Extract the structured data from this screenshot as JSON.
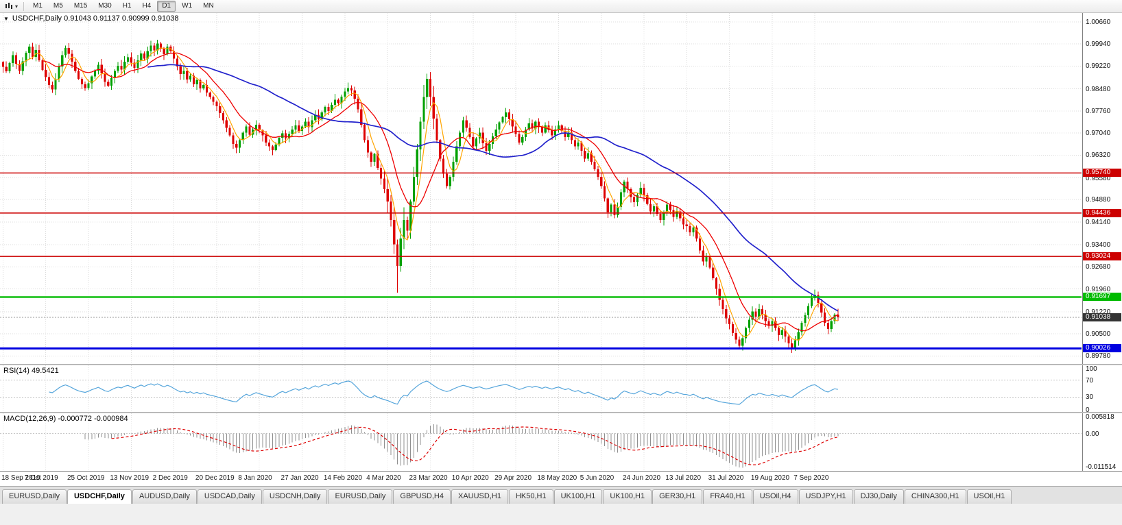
{
  "toolbar": {
    "timeframes": [
      "M1",
      "M5",
      "M15",
      "M30",
      "H1",
      "H4",
      "D1",
      "W1",
      "MN"
    ],
    "active_timeframe": "D1"
  },
  "labels": {
    "chart_title": "USDCHF,Daily 0.91043 0.91137 0.90999 0.91038",
    "rsi": "RSI(14) 49.5421",
    "macd": "MACD(12,26,9) -0.000772 -0.000984"
  },
  "tabs": {
    "items": [
      "EURUSD,Daily",
      "USDCHF,Daily",
      "AUDUSD,Daily",
      "USDCAD,Daily",
      "USDCNH,Daily",
      "EURUSD,Daily",
      "GBPUSD,H4",
      "XAUUSD,H1",
      "HK50,H1",
      "UK100,H1",
      "UK100,H1",
      "GER30,H1",
      "FRA40,H1",
      "USOil,H4",
      "USDJPY,H1",
      "DJ30,Daily",
      "CHINA300,H1",
      "USOil,H1"
    ],
    "active_index": 1
  },
  "chart_data": {
    "type": "candlestick",
    "symbol": "USDCHF",
    "timeframe": "Daily",
    "ohlc_current": {
      "open": 0.91043,
      "high": 0.91137,
      "low": 0.90999,
      "close": 0.91038
    },
    "y_range": [
      0.8952,
      1.0095
    ],
    "y_ticks": [
      "1.00660",
      "0.99940",
      "0.99220",
      "0.98480",
      "0.97760",
      "0.97040",
      "0.96320",
      "0.95580",
      "0.94880",
      "0.94140",
      "0.93400",
      "0.92680",
      "0.91960",
      "0.91220",
      "0.90500",
      "0.89780"
    ],
    "x_tick_labels": [
      "18 Sep 2019",
      "7 Oct 2019",
      "25 Oct 2019",
      "13 Nov 2019",
      "2 Dec 2019",
      "20 Dec 2019",
      "8 Jan 2020",
      "27 Jan 2020",
      "14 Feb 2020",
      "4 Mar 2020",
      "23 Mar 2020",
      "10 Apr 2020",
      "29 Apr 2020",
      "18 May 2020",
      "5 Jun 2020",
      "24 Jun 2020",
      "13 Jul 2020",
      "31 Jul 2020",
      "19 Aug 2020",
      "7 Sep 2020"
    ],
    "x_tick_every": 13,
    "data_fraction": 0.775,
    "first_open": 0.9935,
    "closes": [
      0.992,
      0.9905,
      0.9932,
      0.9958,
      0.993,
      0.9906,
      0.9938,
      0.9965,
      0.9986,
      0.9952,
      0.9975,
      0.9941,
      0.991,
      0.9886,
      0.9861,
      0.9846,
      0.988,
      0.9921,
      0.9958,
      0.9981,
      0.9962,
      0.9936,
      0.9906,
      0.9881,
      0.9863,
      0.9851,
      0.9866,
      0.9889,
      0.9906,
      0.9926,
      0.9899,
      0.9871,
      0.9858,
      0.9883,
      0.9906,
      0.9923,
      0.9911,
      0.9936,
      0.9951,
      0.9933,
      0.9916,
      0.9941,
      0.9963,
      0.9946,
      0.9971,
      0.9989,
      0.9973,
      0.9996,
      0.9979,
      0.9961,
      0.9986,
      0.9971,
      0.9946,
      0.9921,
      0.9896,
      0.9906,
      0.9879,
      0.9891,
      0.9863,
      0.9876,
      0.9849,
      0.9861,
      0.9836,
      0.9821,
      0.9806,
      0.9791,
      0.9769,
      0.9746,
      0.9721,
      0.9696,
      0.9669,
      0.9656,
      0.9681,
      0.9706,
      0.9726,
      0.9699,
      0.9716,
      0.9731,
      0.9713,
      0.9696,
      0.9673,
      0.9661,
      0.9649,
      0.9666,
      0.9689,
      0.9703,
      0.9686,
      0.9701,
      0.9716,
      0.9729,
      0.9711,
      0.9726,
      0.9741,
      0.9723,
      0.9746,
      0.9763,
      0.9749,
      0.9771,
      0.9789,
      0.9776,
      0.9796,
      0.9813,
      0.9801,
      0.9823,
      0.9839,
      0.9851,
      0.9843,
      0.9816,
      0.9781,
      0.9731,
      0.9681,
      0.9641,
      0.9611,
      0.9636,
      0.9591,
      0.9556,
      0.9521,
      0.9481,
      0.9421,
      0.9341,
      0.9271,
      0.9361,
      0.9421,
      0.9386,
      0.9481,
      0.9561,
      0.9651,
      0.9741,
      0.9821,
      0.9881,
      0.9821,
      0.9751,
      0.9681,
      0.9621,
      0.9571,
      0.9531,
      0.9561,
      0.9611,
      0.9661,
      0.9706,
      0.9746,
      0.9721,
      0.9691,
      0.9661,
      0.9686,
      0.9706,
      0.9671,
      0.9646,
      0.9669,
      0.9693,
      0.9716,
      0.9739,
      0.9756,
      0.9771,
      0.9749,
      0.9726,
      0.9701,
      0.9673,
      0.9691,
      0.9716,
      0.9736,
      0.9719,
      0.9741,
      0.9723,
      0.9706,
      0.9729,
      0.9713,
      0.9696,
      0.9716,
      0.9729,
      0.9711,
      0.9691,
      0.9706,
      0.9681,
      0.9661,
      0.9673,
      0.9646,
      0.9621,
      0.9639,
      0.9611,
      0.9586,
      0.9561,
      0.9531,
      0.9491,
      0.9446,
      0.9471,
      0.9436,
      0.9463,
      0.9511,
      0.9546,
      0.9521,
      0.9496,
      0.9479,
      0.9503,
      0.9526,
      0.9501,
      0.9473,
      0.9449,
      0.9466,
      0.9441,
      0.9421,
      0.9446,
      0.9471,
      0.9453,
      0.9431,
      0.9449,
      0.9426,
      0.9406,
      0.9401,
      0.9381,
      0.9396,
      0.9361,
      0.9321,
      0.9286,
      0.9301,
      0.9266,
      0.9231,
      0.9196,
      0.9161,
      0.9131,
      0.9101,
      0.9081,
      0.9053,
      0.9031,
      0.9011,
      0.9036,
      0.9069,
      0.9096,
      0.9123,
      0.9106,
      0.9131,
      0.9113,
      0.9091,
      0.9076,
      0.9091,
      0.9069,
      0.9046,
      0.9063,
      0.9041,
      0.9019,
      0.9003,
      0.9029,
      0.9056,
      0.9086,
      0.9111,
      0.9141,
      0.9166,
      0.9176,
      0.9151,
      0.9119,
      0.9086,
      0.9066,
      0.9091,
      0.9113,
      0.91038
    ],
    "low_overrides": {
      "120": 0.9184
    },
    "candle_colors": {
      "up": "#00A000",
      "down": "#DD0000"
    },
    "overlays": [
      {
        "name": "ma-fast",
        "type": "sma",
        "period": 5,
        "color": "#FFA500",
        "width": 1.2
      },
      {
        "name": "ma-mid",
        "type": "sma",
        "period": 13,
        "color": "#EE0000",
        "width": 1.3
      },
      {
        "name": "ma-slow",
        "type": "sma",
        "period": 45,
        "color": "#2222CC",
        "width": 1.7
      }
    ],
    "hlines": [
      {
        "price": 0.9574,
        "label": "0.95740",
        "color": "#CC0000",
        "width": 1.6
      },
      {
        "price": 0.94436,
        "label": "0.94436",
        "color": "#CC0000",
        "width": 1.6
      },
      {
        "price": 0.93024,
        "label": "0.93024",
        "color": "#CC0000",
        "width": 1.6
      },
      {
        "price": 0.91697,
        "label": "0.91697",
        "color": "#00BB00",
        "width": 2.4
      },
      {
        "price": 0.90026,
        "label": "0.90026",
        "color": "#0000E0",
        "width": 3
      }
    ],
    "current_price": {
      "value": 0.91038,
      "label": "0.91038",
      "badge_color": "#333333",
      "line_color": "#999999"
    },
    "indicators": {
      "rsi": {
        "period": 14,
        "current": 49.5421,
        "range": [
          0,
          100
        ],
        "levels": [
          70,
          30
        ],
        "scale": [
          "100",
          "70",
          "30",
          "0"
        ],
        "color": "#55A5DB"
      },
      "macd": {
        "fast": 12,
        "slow": 26,
        "signal": 9,
        "current_main": -0.000772,
        "current_signal": -0.000984,
        "range": [
          -0.011514,
          0.005818
        ],
        "scale": [
          "0.005818",
          "0.00",
          "-0.011514"
        ],
        "hist_color": "#8F8F8F",
        "signal_color": "#DD0000"
      }
    },
    "grid": {
      "on": true,
      "color": "#DCDCDC"
    }
  }
}
